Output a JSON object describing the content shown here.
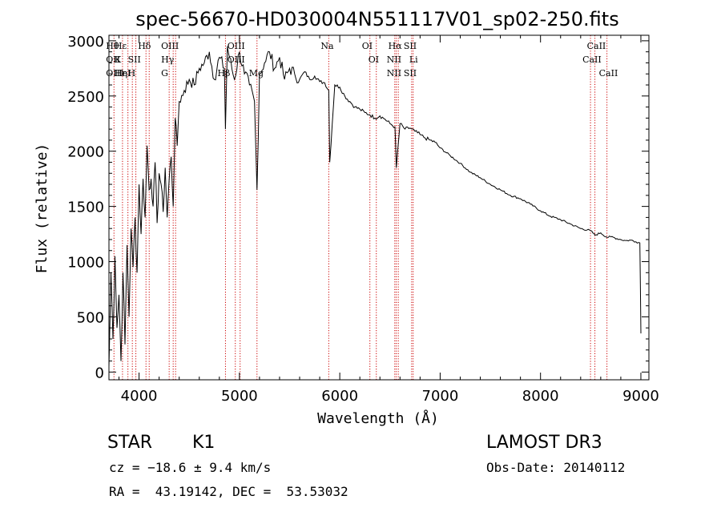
{
  "chart_data": {
    "type": "line",
    "title": "spec-56670-HD030004N551117V01_sp02-250.fits",
    "xlabel": "Wavelength (Å)",
    "ylabel": "Flux (relative)",
    "xlim": [
      3700,
      9080
    ],
    "ylim": [
      -70,
      3050
    ],
    "xticks": [
      4000,
      5000,
      6000,
      7000,
      8000,
      9000
    ],
    "yticks": [
      0,
      500,
      1000,
      1500,
      2000,
      2500,
      3000
    ],
    "grid": false,
    "series": [
      {
        "name": "flux",
        "x": [
          3700,
          3720,
          3740,
          3760,
          3780,
          3800,
          3820,
          3840,
          3860,
          3880,
          3900,
          3920,
          3940,
          3960,
          3980,
          4000,
          4020,
          4040,
          4060,
          4080,
          4100,
          4120,
          4140,
          4160,
          4180,
          4200,
          4220,
          4240,
          4260,
          4280,
          4300,
          4320,
          4340,
          4360,
          4380,
          4400,
          4450,
          4500,
          4550,
          4600,
          4650,
          4700,
          4750,
          4800,
          4850,
          4861,
          4880,
          4900,
          4950,
          5000,
          5050,
          5100,
          5150,
          5175,
          5200,
          5250,
          5300,
          5350,
          5400,
          5450,
          5500,
          5550,
          5600,
          5650,
          5700,
          5750,
          5800,
          5850,
          5890,
          5900,
          5950,
          6000,
          6050,
          6100,
          6150,
          6200,
          6250,
          6300,
          6350,
          6400,
          6450,
          6500,
          6550,
          6563,
          6600,
          6650,
          6700,
          6750,
          6800,
          6850,
          6900,
          6950,
          7000,
          7100,
          7200,
          7300,
          7400,
          7500,
          7600,
          7700,
          7800,
          7900,
          8000,
          8100,
          8200,
          8300,
          8400,
          8500,
          8542,
          8600,
          8662,
          8700,
          8800,
          8850,
          8900,
          8950,
          8990,
          9000
        ],
        "y": [
          50,
          900,
          300,
          1050,
          400,
          700,
          100,
          900,
          250,
          1150,
          500,
          1300,
          950,
          1400,
          900,
          1700,
          1250,
          1750,
          1400,
          2050,
          1650,
          1750,
          1500,
          1900,
          1350,
          1800,
          1700,
          1450,
          1850,
          1400,
          1750,
          1950,
          1500,
          2300,
          2050,
          2450,
          2550,
          2650,
          2600,
          2750,
          2800,
          2900,
          2650,
          2850,
          2750,
          2200,
          2950,
          2850,
          2650,
          2900,
          2700,
          2600,
          2450,
          1650,
          2700,
          2800,
          2900,
          2750,
          2850,
          2650,
          2750,
          2700,
          2650,
          2720,
          2650,
          2680,
          2630,
          2620,
          2550,
          1900,
          2600,
          2580,
          2500,
          2450,
          2400,
          2380,
          2350,
          2330,
          2300,
          2320,
          2290,
          2250,
          2220,
          1850,
          2250,
          2200,
          2210,
          2180,
          2150,
          2120,
          2100,
          2080,
          2030,
          1960,
          1890,
          1810,
          1760,
          1700,
          1650,
          1600,
          1570,
          1520,
          1460,
          1410,
          1380,
          1340,
          1300,
          1280,
          1240,
          1260,
          1220,
          1225,
          1200,
          1190,
          1195,
          1180,
          1170,
          350
        ]
      }
    ],
    "lines": [
      {
        "x": 3750,
        "labels": [
          "Hθ",
          "OII",
          "OIII"
        ]
      },
      {
        "x": 3835,
        "labels": [
          "Hε",
          "K",
          "HeI",
          "Hη"
        ]
      },
      {
        "x": 3889,
        "labels": [
          "",
          "",
          "",
          ""
        ]
      },
      {
        "x": 3933,
        "labels": [
          "",
          "",
          ""
        ]
      },
      {
        "x": 3968,
        "labels": [
          "",
          "SII",
          "H"
        ]
      },
      {
        "x": 4069,
        "labels": [
          "Hδ",
          "",
          ""
        ]
      },
      {
        "x": 4101,
        "labels": [
          "",
          "",
          ""
        ]
      },
      {
        "x": 4300,
        "labels": [
          "OIII",
          "Hγ",
          "G"
        ]
      },
      {
        "x": 4340,
        "labels": [
          "",
          "",
          ""
        ]
      },
      {
        "x": 4364,
        "labels": [
          "",
          "",
          ""
        ]
      },
      {
        "x": 4861,
        "labels": [
          "",
          "",
          "Hβ"
        ]
      },
      {
        "x": 4959,
        "labels": [
          "OIII",
          "OIII",
          ""
        ]
      },
      {
        "x": 5007,
        "labels": [
          "",
          "",
          ""
        ]
      },
      {
        "x": 5175,
        "labels": [
          "",
          "",
          "Mg"
        ]
      },
      {
        "x": 5890,
        "labels": [
          "Na"
        ]
      },
      {
        "x": 6300,
        "labels": [
          "OI"
        ]
      },
      {
        "x": 6364,
        "labels": [
          "",
          "OI"
        ]
      },
      {
        "x": 6548,
        "labels": [
          "",
          "NII",
          "NII"
        ]
      },
      {
        "x": 6563,
        "labels": [
          "Hα",
          "",
          ""
        ]
      },
      {
        "x": 6583,
        "labels": [
          "",
          "",
          ""
        ]
      },
      {
        "x": 6716,
        "labels": [
          "SII",
          "",
          "SII"
        ]
      },
      {
        "x": 6731,
        "labels": [
          "",
          "",
          ""
        ]
      },
      {
        "x": 8498,
        "labels": [
          "",
          "CaII"
        ]
      },
      {
        "x": 8542,
        "labels": [
          "CaII",
          ""
        ]
      },
      {
        "x": 8662,
        "labels": [
          "",
          "",
          "CaII"
        ]
      }
    ],
    "line_color": "#000000",
    "marker_color": "#cc0000",
    "li_label": "Li"
  },
  "info": {
    "object_class": "STAR",
    "subclass": "K1",
    "survey": "LAMOST DR3",
    "cz": "cz = −18.6 ± 9.4 km/s",
    "obs_date": "Obs-Date: 20140112",
    "coords": "RA =  43.19142, DEC =  53.53032"
  }
}
